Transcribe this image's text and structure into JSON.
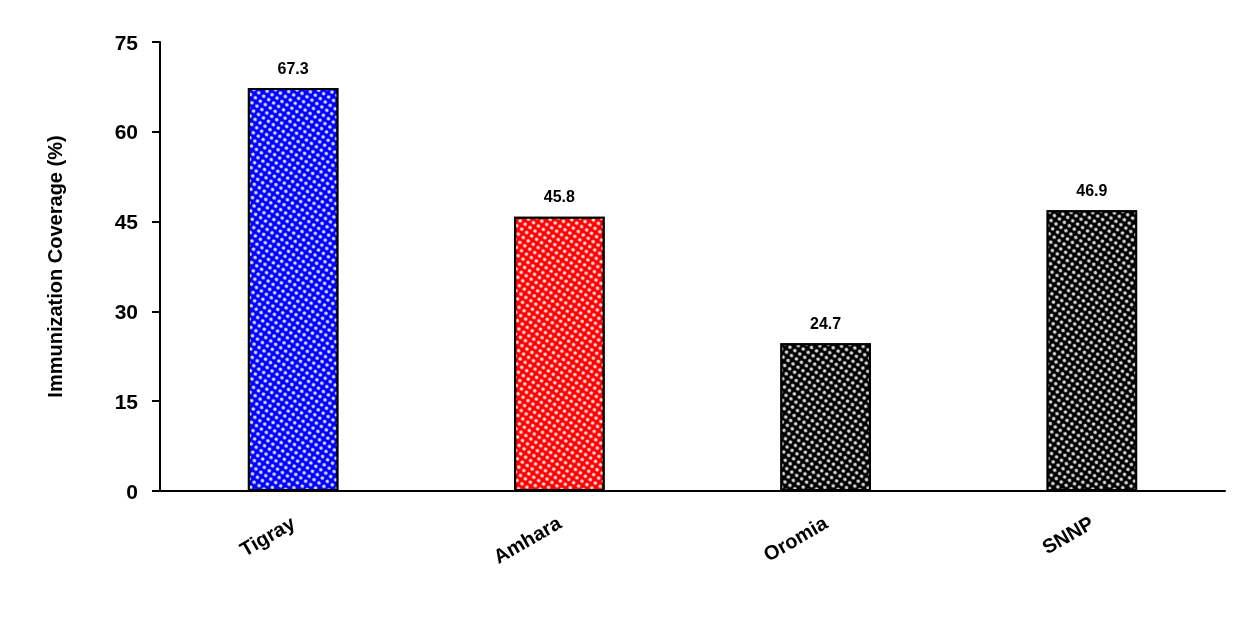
{
  "chart_data": {
    "type": "bar",
    "ylabel": "Immunization Coverage (%)",
    "categories": [
      "Tigray",
      "Amhara",
      "Oromia",
      "SNNP"
    ],
    "values": [
      67.3,
      45.8,
      24.7,
      46.9
    ],
    "colors": [
      "#0000ff",
      "#ff0000",
      "#000000",
      "#000000"
    ],
    "ylim": [
      0,
      75
    ],
    "yticks": [
      0,
      15,
      30,
      45,
      60,
      75
    ],
    "grid": false,
    "data_labels": true
  }
}
